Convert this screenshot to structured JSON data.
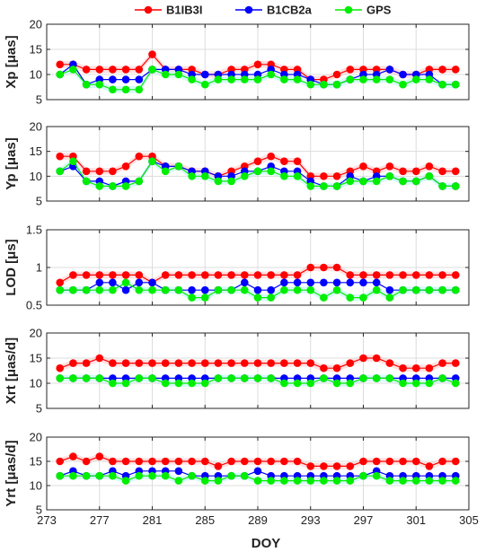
{
  "chart_data": {
    "type": "line",
    "xlabel": "DOY",
    "x_range": [
      273,
      305
    ],
    "x_ticks": [
      273,
      277,
      281,
      285,
      289,
      293,
      297,
      301,
      305
    ],
    "x": [
      274,
      275,
      276,
      277,
      278,
      279,
      280,
      281,
      282,
      283,
      284,
      285,
      286,
      287,
      288,
      289,
      290,
      291,
      292,
      293,
      294,
      295,
      296,
      297,
      298,
      299,
      300,
      301,
      302,
      303,
      304
    ],
    "legend": {
      "placement": "top",
      "entries": [
        "B1IB3I",
        "B1CB2a",
        "GPS"
      ]
    },
    "colors": {
      "B1IB3I": "#ff0000",
      "B1CB2a": "#0000ff",
      "GPS": "#00ee00",
      "band_red": "#ffc6c6",
      "band_cyan": "#c4f6f6"
    },
    "panels": [
      {
        "ylabel": "Xp [μas]",
        "ylim": [
          5,
          20
        ],
        "yticks": [
          "5",
          "10",
          "15",
          "20"
        ],
        "series": [
          {
            "name": "B1IB3I",
            "values": [
              12,
              12,
              11,
              11,
              11,
              11,
              11,
              14,
              11,
              11,
              11,
              10,
              10,
              11,
              11,
              12,
              12,
              11,
              11,
              9,
              9,
              10,
              11,
              11,
              11,
              11,
              10,
              10,
              11,
              11,
              11
            ]
          },
          {
            "name": "B1CB2a",
            "values": [
              10,
              12,
              8,
              9,
              9,
              9,
              9,
              11,
              11,
              11,
              10,
              10,
              10,
              10,
              10,
              10,
              11,
              10,
              10,
              9,
              8,
              8,
              9,
              10,
              10,
              11,
              10,
              10,
              10,
              8,
              8
            ]
          },
          {
            "name": "GPS",
            "values": [
              10,
              11,
              8,
              8,
              7,
              7,
              7,
              11,
              10,
              10,
              9,
              8,
              9,
              9,
              9,
              9,
              10,
              9,
              9,
              8,
              8,
              8,
              9,
              9,
              9,
              9,
              8,
              9,
              9,
              8,
              8
            ]
          }
        ]
      },
      {
        "ylabel": "Yp [μas]",
        "ylim": [
          5,
          20
        ],
        "yticks": [
          "5",
          "10",
          "15",
          "20"
        ],
        "series": [
          {
            "name": "B1IB3I",
            "values": [
              14,
              14,
              11,
              11,
              11,
              12,
              14,
              14,
              12,
              12,
              11,
              11,
              10,
              11,
              12,
              13,
              14,
              13,
              13,
              10,
              10,
              10,
              11,
              12,
              11,
              12,
              11,
              11,
              12,
              11,
              11
            ]
          },
          {
            "name": "B1CB2a",
            "values": [
              11,
              12,
              9,
              9,
              8,
              9,
              9,
              13,
              12,
              12,
              11,
              11,
              10,
              10,
              11,
              11,
              12,
              11,
              11,
              9,
              8,
              8,
              10,
              9,
              10,
              10,
              9,
              9,
              10,
              8,
              8
            ]
          },
          {
            "name": "GPS",
            "values": [
              11,
              13,
              9,
              8,
              8,
              8,
              9,
              13,
              11,
              12,
              10,
              10,
              9,
              9,
              10,
              11,
              11,
              10,
              10,
              8,
              8,
              8,
              9,
              9,
              9,
              10,
              9,
              9,
              10,
              8,
              8
            ]
          }
        ]
      },
      {
        "ylabel": "LOD [μs]",
        "ylim": [
          0.5,
          1.5
        ],
        "yticks": [
          "0.5",
          "1",
          "1.5"
        ],
        "series": [
          {
            "name": "B1IB3I",
            "values": [
              0.8,
              0.9,
              0.9,
              0.9,
              0.9,
              0.9,
              0.9,
              0.8,
              0.9,
              0.9,
              0.9,
              0.9,
              0.9,
              0.9,
              0.9,
              0.9,
              0.9,
              0.9,
              0.9,
              1.0,
              1.0,
              1.0,
              0.9,
              0.9,
              0.9,
              0.9,
              0.9,
              0.9,
              0.9,
              0.9,
              0.9
            ]
          },
          {
            "name": "B1CB2a",
            "values": [
              0.7,
              0.7,
              0.7,
              0.8,
              0.8,
              0.7,
              0.8,
              0.8,
              0.7,
              0.7,
              0.7,
              0.7,
              0.7,
              0.7,
              0.8,
              0.7,
              0.7,
              0.8,
              0.8,
              0.8,
              0.8,
              0.8,
              0.8,
              0.8,
              0.8,
              0.7,
              0.7,
              0.7,
              0.7,
              0.7,
              0.7
            ]
          },
          {
            "name": "GPS",
            "values": [
              0.7,
              0.7,
              0.7,
              0.7,
              0.7,
              0.8,
              0.7,
              0.7,
              0.7,
              0.7,
              0.6,
              0.6,
              0.7,
              0.7,
              0.7,
              0.6,
              0.6,
              0.7,
              0.7,
              0.7,
              0.6,
              0.7,
              0.6,
              0.6,
              0.7,
              0.6,
              0.7,
              0.7,
              0.7,
              0.7,
              0.7
            ]
          }
        ]
      },
      {
        "ylabel": "Xrt [μas/d]",
        "ylim": [
          5,
          20
        ],
        "yticks": [
          "5",
          "10",
          "15",
          "20"
        ],
        "series": [
          {
            "name": "B1IB3I",
            "values": [
              13,
              14,
              14,
              15,
              14,
              14,
              14,
              14,
              14,
              14,
              14,
              14,
              14,
              14,
              14,
              14,
              14,
              14,
              14,
              14,
              13,
              13,
              14,
              15,
              15,
              14,
              13,
              13,
              13,
              14,
              14
            ]
          },
          {
            "name": "B1CB2a",
            "values": [
              11,
              11,
              11,
              11,
              11,
              11,
              11,
              11,
              11,
              11,
              11,
              11,
              11,
              11,
              11,
              11,
              11,
              11,
              11,
              11,
              11,
              11,
              11,
              11,
              11,
              11,
              11,
              11,
              11,
              11,
              11
            ]
          },
          {
            "name": "GPS",
            "values": [
              11,
              11,
              11,
              11,
              10,
              10,
              11,
              11,
              10,
              10,
              10,
              10,
              11,
              11,
              11,
              11,
              11,
              10,
              10,
              10,
              11,
              10,
              10,
              11,
              11,
              11,
              10,
              10,
              10,
              11,
              10
            ]
          }
        ]
      },
      {
        "ylabel": "Yrt [μas/d]",
        "ylim": [
          5,
          20
        ],
        "yticks": [
          "5",
          "10",
          "15",
          "20"
        ],
        "series": [
          {
            "name": "B1IB3I",
            "values": [
              15,
              16,
              15,
              16,
              15,
              15,
              15,
              15,
              15,
              15,
              15,
              15,
              14,
              15,
              15,
              15,
              15,
              15,
              15,
              14,
              14,
              14,
              14,
              15,
              15,
              15,
              15,
              15,
              14,
              15,
              15
            ]
          },
          {
            "name": "B1CB2a",
            "values": [
              12,
              13,
              12,
              12,
              13,
              12,
              13,
              13,
              13,
              13,
              12,
              12,
              12,
              12,
              12,
              13,
              12,
              12,
              12,
              12,
              12,
              12,
              12,
              12,
              13,
              12,
              12,
              12,
              12,
              12,
              12
            ]
          },
          {
            "name": "GPS",
            "values": [
              12,
              12,
              12,
              12,
              12,
              11,
              12,
              12,
              12,
              11,
              12,
              11,
              11,
              12,
              12,
              11,
              11,
              11,
              11,
              11,
              11,
              11,
              11,
              12,
              12,
              11,
              11,
              11,
              11,
              11,
              11
            ]
          }
        ]
      }
    ]
  }
}
